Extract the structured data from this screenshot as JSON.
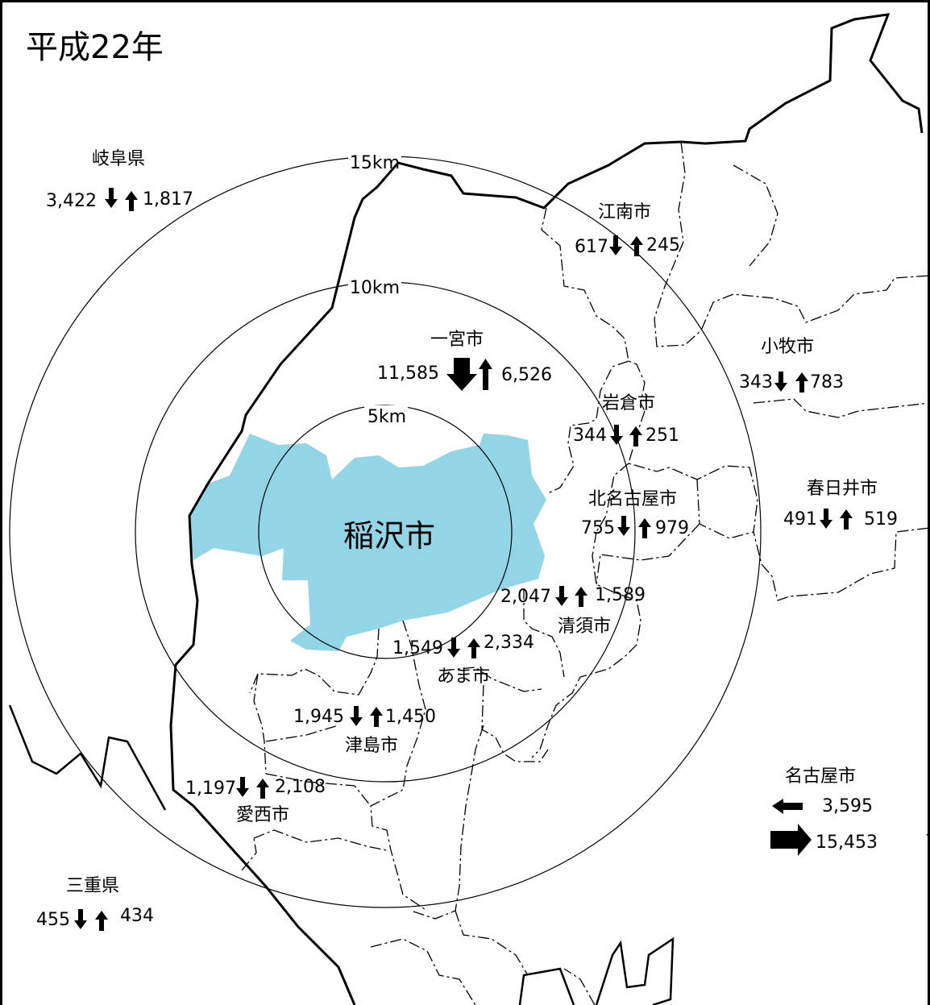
{
  "title": "平成22年",
  "center_city": "稲沢市",
  "rings": [
    "5km",
    "10km",
    "15km"
  ],
  "regions": [
    {
      "id": "gifu",
      "name": "岐阜県",
      "outflow": "3,422",
      "inflow": "1,817"
    },
    {
      "id": "konan",
      "name": "江南市",
      "outflow": "617",
      "inflow": "245"
    },
    {
      "id": "ichinomiya",
      "name": "一宮市",
      "outflow": "11,585",
      "inflow": "6,526"
    },
    {
      "id": "komaki",
      "name": "小牧市",
      "outflow": "343",
      "inflow": "783"
    },
    {
      "id": "iwakura",
      "name": "岩倉市",
      "outflow": "344",
      "inflow": "251"
    },
    {
      "id": "kitanagoya",
      "name": "北名古屋市",
      "outflow": "755",
      "inflow": "979"
    },
    {
      "id": "kasugai",
      "name": "春日井市",
      "outflow": "491",
      "inflow": "519"
    },
    {
      "id": "kiyosu",
      "name": "清須市",
      "outflow": "2,047",
      "inflow": "1,589"
    },
    {
      "id": "ama",
      "name": "あま市",
      "outflow": "1,549",
      "inflow": "2,334"
    },
    {
      "id": "tsushima",
      "name": "津島市",
      "outflow": "1,945",
      "inflow": "1,450"
    },
    {
      "id": "aisai",
      "name": "愛西市",
      "outflow": "1,197",
      "inflow": "2,108"
    },
    {
      "id": "mie",
      "name": "三重県",
      "outflow": "455",
      "inflow": "434"
    },
    {
      "id": "nagoya",
      "name": "名古屋市",
      "inflow": "3,595",
      "outflow": "15,453"
    }
  ],
  "colors": {
    "city_fill": "#92d5e6",
    "line": "#000000",
    "background": "#ffffff"
  }
}
